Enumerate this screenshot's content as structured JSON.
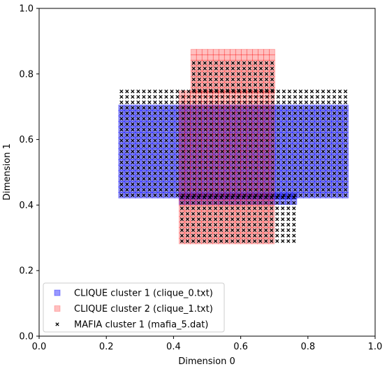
{
  "chart_data": {
    "type": "scatter",
    "xlabel": "Dimension 0",
    "ylabel": "Dimension 1",
    "xlim": [
      0.0,
      1.0
    ],
    "ylim": [
      0.0,
      1.0
    ],
    "xticks": [
      "0.0",
      "0.2",
      "0.4",
      "0.6",
      "0.8",
      "1.0"
    ],
    "yticks": [
      "0.0",
      "0.2",
      "0.4",
      "0.6",
      "0.8",
      "1.0"
    ],
    "grid": false,
    "legend_position": "lower-left",
    "series": [
      {
        "name": "CLIQUE cluster 1 (clique_0.txt)",
        "marker": "square",
        "color": "#0000ff",
        "alpha": 0.4,
        "regions": [
          {
            "x": [
              0.245,
              0.925
            ],
            "y": [
              0.43,
              0.705
            ]
          },
          {
            "x": [
              0.425,
              0.76
            ],
            "y": [
              0.41,
              0.43
            ]
          }
        ]
      },
      {
        "name": "CLIQUE cluster 2 (clique_1.txt)",
        "marker": "square",
        "color": "#ff0000",
        "alpha": 0.25,
        "regions": [
          {
            "x": [
              0.425,
              0.705
            ],
            "y": [
              0.29,
              0.75
            ]
          },
          {
            "x": [
              0.46,
              0.705
            ],
            "y": [
              0.75,
              0.87
            ]
          }
        ]
      },
      {
        "name": "MAFIA cluster 1 (mafia_5.dat)",
        "marker": "x",
        "color": "#000000",
        "regions": [
          {
            "x": [
              0.245,
              0.925
            ],
            "y": [
              0.43,
              0.75
            ]
          },
          {
            "x": [
              0.46,
              0.705
            ],
            "y": [
              0.75,
              0.85
            ]
          },
          {
            "x": [
              0.425,
              0.76
            ],
            "y": [
              0.29,
              0.43
            ]
          }
        ]
      }
    ]
  }
}
